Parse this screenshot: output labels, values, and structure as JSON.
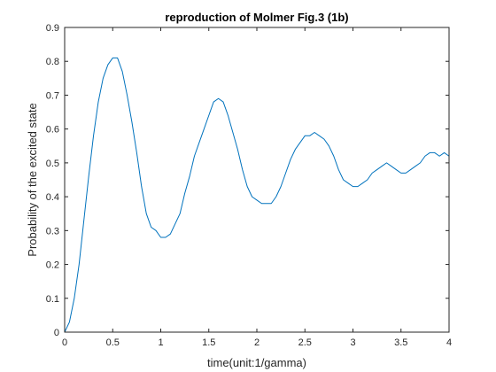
{
  "chart_data": {
    "type": "line",
    "title": "reproduction of Molmer Fig.3 (1b)",
    "xlabel": "time(unit:1/gamma)",
    "ylabel": "Probability of the excited state",
    "xlim": [
      0,
      4
    ],
    "ylim": [
      0,
      0.9
    ],
    "xticks": [
      0,
      0.5,
      1,
      1.5,
      2,
      2.5,
      3,
      3.5,
      4
    ],
    "xtick_labels": [
      "0",
      "0.5",
      "1",
      "1.5",
      "2",
      "2.5",
      "3",
      "3.5",
      "4"
    ],
    "yticks": [
      0,
      0.1,
      0.2,
      0.3,
      0.4,
      0.5,
      0.6,
      0.7,
      0.8,
      0.9
    ],
    "ytick_labels": [
      "0",
      "0.1",
      "0.2",
      "0.3",
      "0.4",
      "0.5",
      "0.6",
      "0.7",
      "0.8",
      "0.9"
    ],
    "grid": false,
    "box": true,
    "series": [
      {
        "color": "#0072BD",
        "x": [
          0,
          0.05,
          0.1,
          0.15,
          0.2,
          0.25,
          0.3,
          0.35,
          0.4,
          0.45,
          0.5,
          0.55,
          0.6,
          0.65,
          0.7,
          0.75,
          0.8,
          0.85,
          0.9,
          0.95,
          1.0,
          1.05,
          1.1,
          1.15,
          1.2,
          1.25,
          1.3,
          1.35,
          1.4,
          1.45,
          1.5,
          1.55,
          1.6,
          1.65,
          1.7,
          1.75,
          1.8,
          1.85,
          1.9,
          1.95,
          2.0,
          2.05,
          2.1,
          2.15,
          2.2,
          2.25,
          2.3,
          2.35,
          2.4,
          2.45,
          2.5,
          2.55,
          2.6,
          2.65,
          2.7,
          2.75,
          2.8,
          2.85,
          2.9,
          2.95,
          3.0,
          3.05,
          3.1,
          3.15,
          3.2,
          3.25,
          3.3,
          3.35,
          3.4,
          3.45,
          3.5,
          3.55,
          3.6,
          3.65,
          3.7,
          3.75,
          3.8,
          3.85,
          3.9,
          3.95,
          4.0
        ],
        "y": [
          0.0,
          0.03,
          0.1,
          0.2,
          0.33,
          0.46,
          0.58,
          0.68,
          0.75,
          0.79,
          0.81,
          0.81,
          0.77,
          0.7,
          0.62,
          0.53,
          0.43,
          0.35,
          0.31,
          0.3,
          0.28,
          0.28,
          0.29,
          0.32,
          0.35,
          0.41,
          0.46,
          0.52,
          0.56,
          0.6,
          0.64,
          0.68,
          0.69,
          0.68,
          0.64,
          0.59,
          0.54,
          0.48,
          0.43,
          0.4,
          0.39,
          0.38,
          0.38,
          0.38,
          0.4,
          0.43,
          0.47,
          0.51,
          0.54,
          0.56,
          0.58,
          0.58,
          0.59,
          0.58,
          0.57,
          0.55,
          0.52,
          0.48,
          0.45,
          0.44,
          0.43,
          0.43,
          0.44,
          0.45,
          0.47,
          0.48,
          0.49,
          0.5,
          0.49,
          0.48,
          0.47,
          0.47,
          0.48,
          0.49,
          0.5,
          0.52,
          0.53,
          0.53,
          0.52,
          0.53,
          0.52
        ]
      }
    ]
  }
}
